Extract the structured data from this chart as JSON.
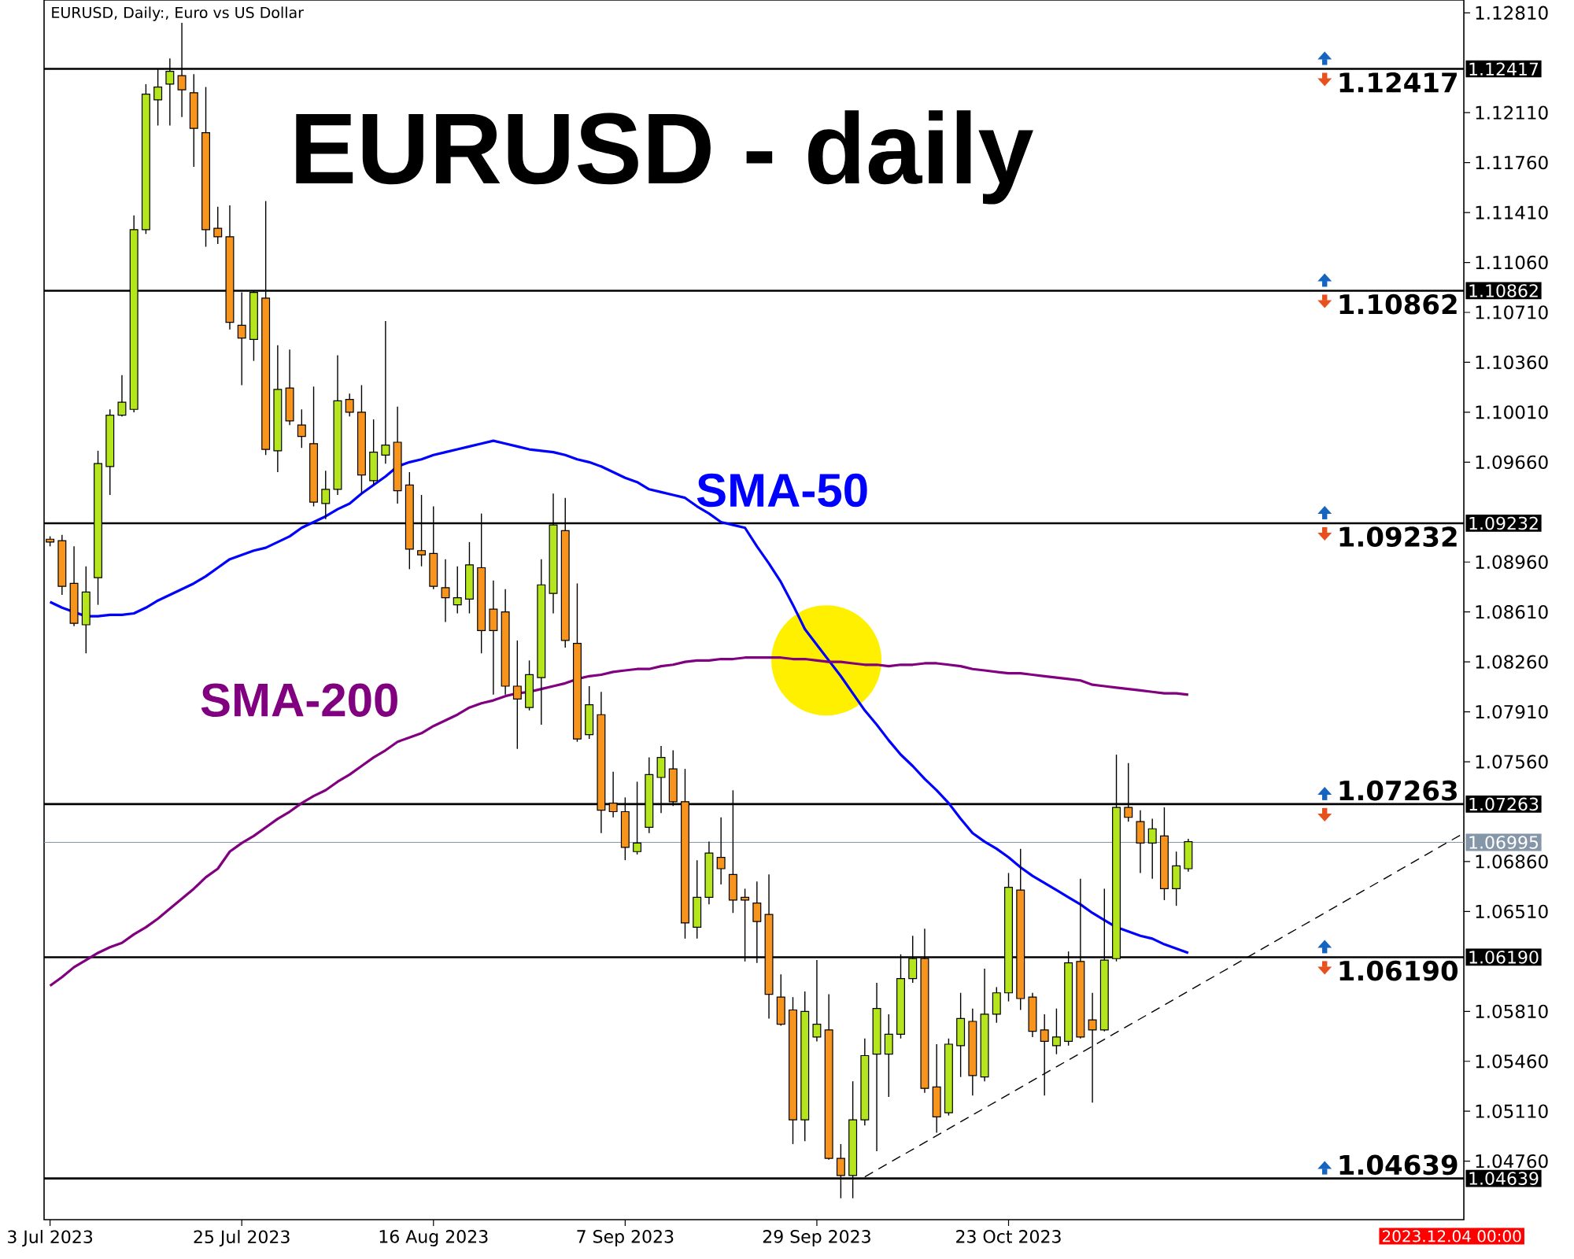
{
  "chart_data": {
    "type": "candlestick",
    "title": "EURUSD - daily",
    "annotations": [
      "EURUSD, Daily:, Euro vs US Dollar",
      "2023.12.04 00:00"
    ],
    "categories": [
      "3 Jul 2023",
      null,
      null,
      null,
      null,
      null,
      null,
      null,
      null,
      null,
      null,
      null,
      null,
      null,
      null,
      null,
      "25 Jul 2023",
      null,
      null,
      null,
      null,
      null,
      null,
      null,
      null,
      null,
      null,
      null,
      null,
      null,
      null,
      null,
      "16 Aug 2023",
      null,
      null,
      null,
      null,
      null,
      null,
      null,
      null,
      null,
      null,
      null,
      null,
      null,
      null,
      null,
      "7 Sep 2023",
      null,
      null,
      null,
      null,
      null,
      null,
      null,
      null,
      null,
      null,
      null,
      null,
      null,
      null,
      null,
      "29 Sep 2023",
      null,
      null,
      null,
      null,
      null,
      null,
      null,
      null,
      null,
      null,
      null,
      null,
      null,
      null,
      null,
      "23 Oct 2023",
      null,
      null,
      null,
      null,
      null,
      null,
      null,
      null,
      null,
      null,
      null,
      null,
      null,
      null,
      null,
      null,
      null,
      null,
      null,
      null,
      null,
      null,
      null,
      null,
      null,
      null,
      null,
      null,
      null,
      null,
      null,
      null,
      null,
      null,
      null,
      null,
      null,
      null
    ],
    "ohlc": [
      [
        1.0912,
        1.0914,
        1.0907,
        1.091
      ],
      [
        1.0911,
        1.0915,
        1.0873,
        1.0879
      ],
      [
        1.0881,
        1.0907,
        1.0851,
        1.0853
      ],
      [
        1.0852,
        1.0893,
        1.0832,
        1.0875
      ],
      [
        1.0885,
        1.0974,
        1.0866,
        1.0965
      ],
      [
        1.0963,
        1.1003,
        1.0943,
        1.0999
      ],
      [
        1.0999,
        1.1027,
        1.0998,
        1.1008
      ],
      [
        1.1003,
        1.1139,
        1.1001,
        1.1129
      ],
      [
        1.1129,
        1.1231,
        1.1126,
        1.1224
      ],
      [
        1.122,
        1.1242,
        1.1202,
        1.1229
      ],
      [
        1.1231,
        1.1249,
        1.1202,
        1.124
      ],
      [
        1.1237,
        1.1274,
        1.1208,
        1.1227
      ],
      [
        1.1225,
        1.1238,
        1.1173,
        1.12
      ],
      [
        1.1197,
        1.1229,
        1.1117,
        1.1129
      ],
      [
        1.113,
        1.1145,
        1.1119,
        1.1124
      ],
      [
        1.1124,
        1.1146,
        1.1059,
        1.1064
      ],
      [
        1.1062,
        1.1085,
        1.102,
        1.1053
      ],
      [
        1.1052,
        1.1086,
        1.1037,
        1.1085
      ],
      [
        1.1081,
        1.1149,
        1.0971,
        1.0975
      ],
      [
        1.0974,
        1.1048,
        1.0959,
        1.1017
      ],
      [
        1.1018,
        1.1045,
        1.0992,
        1.0995
      ],
      [
        1.0992,
        1.1003,
        1.0976,
        1.0984
      ],
      [
        1.0979,
        1.1019,
        1.0935,
        1.0938
      ],
      [
        1.0937,
        1.096,
        1.0926,
        1.0947
      ],
      [
        1.0947,
        1.1041,
        1.0943,
        1.1009
      ],
      [
        1.101,
        1.1014,
        1.0998,
        1.1001
      ],
      [
        1.1001,
        1.102,
        1.0944,
        1.0957
      ],
      [
        1.0953,
        1.0996,
        1.095,
        1.0973
      ],
      [
        1.0971,
        1.1065,
        1.0965,
        1.0978
      ],
      [
        1.098,
        1.1005,
        1.0937,
        1.0946
      ],
      [
        1.095,
        1.0959,
        1.0891,
        1.0905
      ],
      [
        1.0904,
        1.0943,
        1.0893,
        1.0901
      ],
      [
        1.0902,
        1.0935,
        1.0877,
        1.0879
      ],
      [
        1.0878,
        1.0898,
        1.0854,
        1.0871
      ],
      [
        1.0866,
        1.0893,
        1.086,
        1.0871
      ],
      [
        1.087,
        1.091,
        1.086,
        1.0894
      ],
      [
        1.0892,
        1.093,
        1.0832,
        1.0848
      ],
      [
        1.0863,
        1.0883,
        1.0803,
        1.0848
      ],
      [
        1.0861,
        1.0877,
        1.0803,
        1.0809
      ],
      [
        1.0809,
        1.0841,
        1.0765,
        1.08
      ],
      [
        1.0794,
        1.0827,
        1.0792,
        1.0817
      ],
      [
        1.0815,
        1.0898,
        1.0782,
        1.088
      ],
      [
        1.0874,
        1.0944,
        1.086,
        1.0922
      ],
      [
        1.0918,
        1.0941,
        1.0836,
        1.0841
      ],
      [
        1.0839,
        1.0881,
        1.077,
        1.0772
      ],
      [
        1.0775,
        1.0809,
        1.0772,
        1.0796
      ],
      [
        1.0789,
        1.0805,
        1.0706,
        1.0722
      ],
      [
        1.0727,
        1.0749,
        1.0717,
        1.0721
      ],
      [
        1.0721,
        1.0731,
        1.0687,
        1.0696
      ],
      [
        1.0693,
        1.0742,
        1.0691,
        1.0699
      ],
      [
        1.071,
        1.0759,
        1.0706,
        1.0747
      ],
      [
        1.0745,
        1.0767,
        1.072,
        1.0759
      ],
      [
        1.0751,
        1.0764,
        1.0725,
        1.0728
      ],
      [
        1.0728,
        1.0751,
        1.0632,
        1.0643
      ],
      [
        1.064,
        1.0687,
        1.0632,
        1.0661
      ],
      [
        1.0661,
        1.07,
        1.0656,
        1.0692
      ],
      [
        1.0689,
        1.0717,
        1.067,
        1.0681
      ],
      [
        1.0677,
        1.0736,
        1.065,
        1.0659
      ],
      [
        1.0661,
        1.0667,
        1.0616,
        1.0659
      ],
      [
        1.0657,
        1.0672,
        1.0615,
        1.0644
      ],
      [
        1.0649,
        1.0677,
        1.0576,
        1.0593
      ],
      [
        1.0591,
        1.0607,
        1.0571,
        1.0572
      ],
      [
        1.0582,
        1.0591,
        1.0488,
        1.0505
      ],
      [
        1.0505,
        1.0595,
        1.049,
        1.0581
      ],
      [
        1.0563,
        1.0617,
        1.056,
        1.0572
      ],
      [
        1.0568,
        1.0593,
        1.0477,
        1.0478
      ],
      [
        1.0478,
        1.0488,
        1.045,
        1.0466
      ],
      [
        1.0466,
        1.0532,
        1.045,
        1.0505
      ],
      [
        1.0505,
        1.0562,
        1.0501,
        1.055
      ],
      [
        1.0551,
        1.0601,
        1.0483,
        1.0583
      ],
      [
        1.0551,
        1.0579,
        1.0521,
        1.0565
      ],
      [
        1.0565,
        1.0621,
        1.0562,
        1.0604
      ],
      [
        1.0604,
        1.0634,
        1.0601,
        1.0618
      ],
      [
        1.0618,
        1.0639,
        1.0524,
        1.0527
      ],
      [
        1.0528,
        1.0558,
        1.0496,
        1.0507
      ],
      [
        1.051,
        1.0562,
        1.0508,
        1.0558
      ],
      [
        1.0557,
        1.0594,
        1.0535,
        1.0576
      ],
      [
        1.0574,
        1.0583,
        1.0522,
        1.0536
      ],
      [
        1.0535,
        1.0611,
        1.0532,
        1.0579
      ],
      [
        1.0579,
        1.0598,
        1.0573,
        1.0594
      ],
      [
        1.0594,
        1.0678,
        1.0588,
        1.0668
      ],
      [
        1.0666,
        1.0695,
        1.0582,
        1.059
      ],
      [
        1.0591,
        1.0594,
        1.0563,
        1.0567
      ],
      [
        1.0568,
        1.0579,
        1.0522,
        1.056
      ],
      [
        1.0557,
        1.0583,
        1.0551,
        1.0563
      ],
      [
        1.056,
        1.0623,
        1.0557,
        1.0615
      ],
      [
        1.0616,
        1.0674,
        1.0562,
        1.0563
      ],
      [
        1.0575,
        1.0594,
        1.0517,
        1.0568
      ],
      [
        1.0568,
        1.0667,
        1.0567,
        1.0617
      ],
      [
        1.0618,
        1.0761,
        1.0616,
        1.0724
      ],
      [
        1.0724,
        1.0755,
        1.0714,
        1.0717
      ],
      [
        1.0714,
        1.0722,
        1.0678,
        1.0699
      ],
      [
        1.0699,
        1.0716,
        1.0674,
        1.0709
      ],
      [
        1.0704,
        1.0724,
        1.0659,
        1.0667
      ],
      [
        1.0667,
        1.0693,
        1.0655,
        1.0683
      ],
      [
        1.0681,
        1.0702,
        1.0679,
        1.07
      ],
      null,
      null,
      null,
      null,
      null,
      null,
      null,
      null,
      null,
      null,
      null,
      null,
      null,
      null,
      null,
      null,
      null,
      null,
      null,
      null,
      null,
      null,
      null
    ],
    "series": [
      {
        "name": "SMA-50",
        "type": "line",
        "color": "#0000ff",
        "values": [
          1.0868,
          1.0864,
          1.0861,
          1.0858,
          1.0858,
          1.0859,
          1.0859,
          1.086,
          1.0864,
          1.0869,
          1.0873,
          1.0877,
          1.0881,
          1.0886,
          1.0892,
          1.0898,
          1.0901,
          1.0904,
          1.0906,
          1.091,
          1.0914,
          1.092,
          1.0924,
          1.0928,
          1.0933,
          1.0937,
          1.0944,
          1.095,
          1.0956,
          1.0963,
          1.0966,
          1.0968,
          1.0971,
          1.0973,
          1.0975,
          1.0977,
          1.0979,
          1.0981,
          1.0979,
          1.0977,
          1.0975,
          1.0974,
          1.0973,
          1.0971,
          1.0968,
          1.0966,
          1.0963,
          1.0959,
          1.0955,
          1.0952,
          1.0947,
          1.0945,
          1.0943,
          1.0941,
          1.0935,
          1.093,
          1.0924,
          1.0922,
          1.092,
          1.0907,
          1.0895,
          1.0882,
          1.0866,
          1.0849,
          1.0838,
          1.0827,
          1.0816,
          1.0804,
          1.0792,
          1.0782,
          1.0771,
          1.0761,
          1.0753,
          1.0744,
          1.0736,
          1.0727,
          1.0716,
          1.0706,
          1.07,
          1.0695,
          1.0689,
          1.0682,
          1.0676,
          1.0671,
          1.0666,
          1.0661,
          1.0656,
          1.065,
          1.0645,
          1.064,
          1.0637,
          1.0634,
          1.0632,
          1.0628,
          1.0625,
          1.0622,
          null,
          null,
          null,
          null,
          null,
          null,
          null,
          null,
          null,
          null,
          null,
          null,
          null,
          null,
          null,
          null,
          null,
          null,
          null,
          null,
          null,
          null,
          null
        ]
      },
      {
        "name": "SMA-200",
        "type": "line",
        "color": "#800080",
        "values": [
          1.0599,
          1.0605,
          1.0612,
          1.0617,
          1.0622,
          1.0626,
          1.0629,
          1.0635,
          1.064,
          1.0646,
          1.0653,
          1.066,
          1.0667,
          1.0675,
          1.0681,
          1.0693,
          1.0699,
          1.0704,
          1.071,
          1.0716,
          1.0721,
          1.0727,
          1.0732,
          1.0736,
          1.0742,
          1.0747,
          1.0753,
          1.0759,
          1.0764,
          1.077,
          1.0773,
          1.0776,
          1.0781,
          1.0785,
          1.0789,
          1.0794,
          1.0797,
          1.0799,
          1.0802,
          1.0804,
          1.0805,
          1.0807,
          1.0809,
          1.0811,
          1.0814,
          1.0816,
          1.0817,
          1.0819,
          1.082,
          1.0821,
          1.0821,
          1.0823,
          1.0824,
          1.0826,
          1.0827,
          1.0827,
          1.0828,
          1.0828,
          1.0829,
          1.0829,
          1.0829,
          1.0829,
          1.0828,
          1.0828,
          1.0827,
          1.0826,
          1.0826,
          1.0825,
          1.0824,
          1.0824,
          1.0823,
          1.0824,
          1.0824,
          1.0825,
          1.0825,
          1.0824,
          1.0823,
          1.0821,
          1.082,
          1.0819,
          1.0818,
          1.0818,
          1.0817,
          1.0816,
          1.0815,
          1.0814,
          1.0813,
          1.081,
          1.0809,
          1.0808,
          1.0807,
          1.0806,
          1.0805,
          1.0804,
          1.0804,
          1.0803,
          null,
          null,
          null,
          null,
          null,
          null,
          null,
          null,
          null,
          null,
          null,
          null,
          null,
          null,
          null,
          null,
          null,
          null,
          null,
          null,
          null,
          null,
          null
        ]
      },
      {
        "type": "line",
        "color": "#000000",
        "line_style": "dashed",
        "values": [
          null,
          null,
          null,
          null,
          null,
          null,
          null,
          null,
          null,
          null,
          null,
          null,
          null,
          null,
          null,
          null,
          null,
          null,
          null,
          null,
          null,
          null,
          null,
          null,
          null,
          null,
          null,
          null,
          null,
          null,
          null,
          null,
          null,
          null,
          null,
          null,
          null,
          null,
          null,
          null,
          null,
          null,
          null,
          null,
          null,
          null,
          null,
          null,
          null,
          null,
          null,
          null,
          null,
          null,
          null,
          null,
          null,
          null,
          null,
          null,
          null,
          null,
          null,
          null,
          null,
          null,
          null,
          null,
          1.0465,
          null,
          null,
          null,
          null,
          null,
          null,
          null,
          null,
          null,
          null,
          null,
          null,
          null,
          null,
          null,
          null,
          null,
          null,
          null,
          null,
          null,
          null,
          null,
          null,
          null,
          null,
          null,
          null,
          null,
          null,
          null,
          null,
          null,
          null,
          null,
          null,
          null,
          null,
          null,
          null,
          null,
          null,
          null,
          null,
          null,
          null,
          null,
          null,
          null,
          1.0706
        ]
      }
    ],
    "ylim": [
      1.0435,
      1.129
    ],
    "yticks": [
      {
        "value": 1.0476,
        "label": "1.04760"
      },
      {
        "value": 1.0511,
        "label": "1.05110"
      },
      {
        "value": 1.0546,
        "label": "1.05460"
      },
      {
        "value": 1.0581,
        "label": "1.05810"
      },
      {
        "value": 1.0651,
        "label": "1.06510"
      },
      {
        "value": 1.0686,
        "label": "1.06860"
      },
      {
        "value": 1.0756,
        "label": "1.07560"
      },
      {
        "value": 1.0791,
        "label": "1.07910"
      },
      {
        "value": 1.0826,
        "label": "1.08260"
      },
      {
        "value": 1.0861,
        "label": "1.08610"
      },
      {
        "value": 1.0896,
        "label": "1.08960"
      },
      {
        "value": 1.0966,
        "label": "1.09660"
      },
      {
        "value": 1.1001,
        "label": "1.10010"
      },
      {
        "value": 1.1036,
        "label": "1.10360"
      },
      {
        "value": 1.1071,
        "label": "1.10710"
      },
      {
        "value": 1.1106,
        "label": "1.11060"
      },
      {
        "value": 1.1141,
        "label": "1.11410"
      },
      {
        "value": 1.1176,
        "label": "1.11760"
      },
      {
        "value": 1.1211,
        "label": "1.12110"
      },
      {
        "value": 1.1281,
        "label": "1.12810"
      }
    ],
    "ref_lines": [
      {
        "axis": "y",
        "value": 1.12417,
        "label": "1.12417",
        "color": "#000000"
      },
      {
        "axis": "y",
        "value": 1.10862,
        "label": "1.10862",
        "color": "#000000"
      },
      {
        "axis": "y",
        "value": 1.09232,
        "label": "1.09232",
        "color": "#000000"
      },
      {
        "axis": "y",
        "value": 1.07263,
        "label": "1.07263",
        "color": "#000000"
      },
      {
        "axis": "y",
        "value": 1.0619,
        "label": "1.06190",
        "color": "#000000"
      },
      {
        "axis": "y",
        "value": 1.04639,
        "label": "1.04639",
        "color": "#000000"
      },
      {
        "axis": "y",
        "value": 1.06995,
        "label": "1.06995",
        "color": "#8496a8"
      }
    ]
  }
}
